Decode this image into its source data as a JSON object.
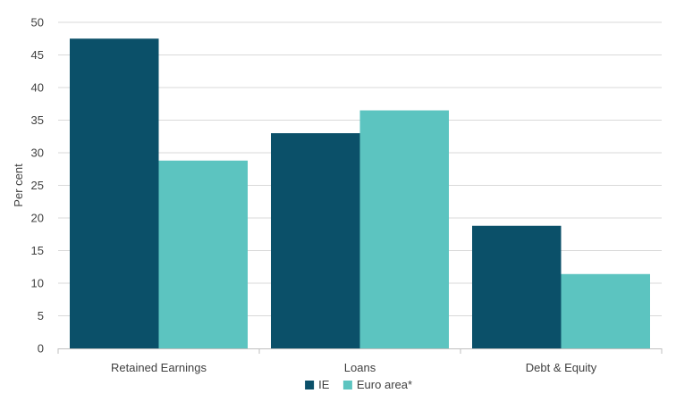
{
  "chart_data": {
    "type": "bar",
    "categories": [
      "Retained Earnings",
      "Loans",
      "Debt & Equity"
    ],
    "series": [
      {
        "name": "IE",
        "values": [
          47.5,
          33.0,
          18.8
        ],
        "color": "#0b5069"
      },
      {
        "name": "Euro area*",
        "values": [
          28.8,
          36.5,
          11.4
        ],
        "color": "#5cc4c0"
      }
    ],
    "ylabel": "Per cent",
    "ylim": [
      0,
      50
    ],
    "yticks": [
      0,
      5,
      10,
      15,
      20,
      25,
      30,
      35,
      40,
      45,
      50
    ],
    "grid": true,
    "legend_position": "bottom-center"
  }
}
